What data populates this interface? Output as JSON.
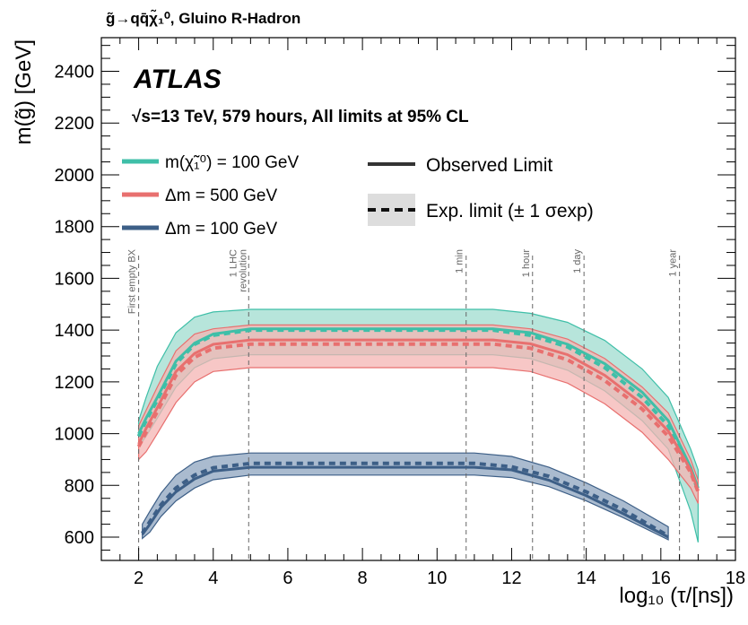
{
  "chart_data": {
    "type": "line",
    "title": "g̃→qq̄χ̃₁⁰, Gluino R-Hadron",
    "experiment": "ATLAS",
    "subtitle": "√s=13 TeV, 579 hours, All limits at 95% CL",
    "xlabel": "log₁₀ (τ/[ns])",
    "ylabel": "m(g̃) [GeV]",
    "xlim": [
      1,
      18
    ],
    "ylim": [
      510,
      2530
    ],
    "x_ticks": [
      2,
      4,
      6,
      8,
      10,
      12,
      14,
      16,
      18
    ],
    "y_ticks": [
      600,
      800,
      1000,
      1200,
      1400,
      1600,
      1800,
      2000,
      2200,
      2400
    ],
    "legend_placement": "top-left",
    "legend": {
      "series_labels": [
        "m(χ̃₁⁰) = 100 GeV",
        "Δm = 500 GeV",
        "Δm = 100 GeV"
      ],
      "observed_label": "Observed Limit",
      "expected_label": "Exp. limit (± 1 σexp)"
    },
    "reference_lines": [
      {
        "x": 2.0,
        "label": "First empty BX"
      },
      {
        "x": 4.95,
        "label": "1 LHC revolution"
      },
      {
        "x": 10.78,
        "label": "1 min"
      },
      {
        "x": 12.56,
        "label": "1 hour"
      },
      {
        "x": 13.94,
        "label": "1 day"
      },
      {
        "x": 16.5,
        "label": "1 year"
      }
    ],
    "series": [
      {
        "name": "m(χ̃₁⁰) = 100 GeV",
        "color": "#3fbfa8",
        "band_fill": "#9fdccf",
        "observed": {
          "x": [
            2.0,
            2.2,
            2.5,
            3.0,
            3.5,
            4.0,
            5.0,
            6.0,
            8.0,
            10.0,
            11.5,
            12.5,
            13.5,
            14.5,
            15.5,
            16.2,
            16.8,
            17.0
          ],
          "y": [
            1000,
            1060,
            1140,
            1280,
            1350,
            1385,
            1405,
            1405,
            1405,
            1405,
            1405,
            1390,
            1345,
            1270,
            1160,
            1050,
            870,
            790
          ]
        },
        "expected": {
          "x": [
            2.0,
            2.2,
            2.5,
            3.0,
            3.5,
            4.0,
            5.0,
            6.0,
            8.0,
            10.0,
            11.5,
            12.5,
            13.5,
            14.5,
            15.5,
            16.2,
            16.8,
            17.0
          ],
          "y": [
            990,
            1050,
            1130,
            1270,
            1345,
            1380,
            1400,
            1400,
            1400,
            1400,
            1400,
            1380,
            1335,
            1255,
            1140,
            1030,
            860,
            780
          ]
        },
        "band_upper": [
          1050,
          1140,
          1260,
          1390,
          1450,
          1470,
          1480,
          1480,
          1480,
          1480,
          1480,
          1465,
          1430,
          1360,
          1250,
          1140,
          940,
          860
        ],
        "band_lower": [
          950,
          990,
          1060,
          1180,
          1255,
          1290,
          1305,
          1305,
          1305,
          1305,
          1305,
          1290,
          1245,
          1165,
          1050,
          940,
          700,
          580
        ]
      },
      {
        "name": "Δm = 500 GeV",
        "color": "#e8706f",
        "band_fill": "#f4b4b3",
        "observed": {
          "x": [
            2.0,
            2.2,
            2.5,
            3.0,
            3.5,
            4.0,
            5.0,
            6.0,
            8.0,
            10.0,
            11.5,
            12.5,
            13.5,
            14.5,
            15.5,
            16.2,
            16.8,
            17.0
          ],
          "y": [
            960,
            1020,
            1100,
            1240,
            1310,
            1345,
            1362,
            1362,
            1362,
            1362,
            1362,
            1347,
            1305,
            1225,
            1115,
            1010,
            860,
            780
          ]
        },
        "expected": {
          "x": [
            2.0,
            2.2,
            2.5,
            3.0,
            3.5,
            4.0,
            5.0,
            6.0,
            8.0,
            10.0,
            11.5,
            12.5,
            13.5,
            14.5,
            15.5,
            16.2,
            16.8,
            17.0
          ],
          "y": [
            950,
            1005,
            1085,
            1225,
            1295,
            1330,
            1346,
            1346,
            1346,
            1346,
            1346,
            1330,
            1285,
            1205,
            1095,
            990,
            850,
            775
          ]
        },
        "band_upper": [
          1030,
          1090,
          1180,
          1320,
          1385,
          1405,
          1420,
          1420,
          1420,
          1420,
          1420,
          1405,
          1365,
          1290,
          1180,
          1080,
          900,
          820
        ],
        "band_lower": [
          900,
          930,
          1000,
          1120,
          1200,
          1240,
          1255,
          1255,
          1255,
          1255,
          1255,
          1240,
          1195,
          1115,
          1005,
          900,
          790,
          730
        ]
      },
      {
        "name": "Δm = 100 GeV",
        "color": "#3d5f87",
        "band_fill": "#8ea4bf",
        "observed": {
          "x": [
            2.1,
            2.3,
            2.6,
            3.0,
            3.5,
            4.0,
            5.0,
            6.0,
            8.0,
            10.0,
            11.0,
            12.0,
            13.0,
            14.0,
            15.0,
            16.2
          ],
          "y": [
            610,
            650,
            715,
            775,
            825,
            855,
            870,
            870,
            870,
            870,
            870,
            860,
            820,
            760,
            690,
            600
          ]
        },
        "expected": {
          "x": [
            2.1,
            2.3,
            2.6,
            3.0,
            3.5,
            4.0,
            5.0,
            6.0,
            8.0,
            10.0,
            11.0,
            12.0,
            13.0,
            14.0,
            15.0,
            16.2
          ],
          "y": [
            615,
            660,
            725,
            790,
            840,
            868,
            885,
            885,
            885,
            885,
            885,
            872,
            835,
            775,
            705,
            605
          ]
        },
        "band_upper": [
          650,
          700,
          770,
          840,
          890,
          912,
          925,
          925,
          925,
          925,
          925,
          912,
          870,
          810,
          740,
          640
        ],
        "band_lower": [
          595,
          620,
          680,
          740,
          790,
          822,
          840,
          840,
          840,
          840,
          840,
          830,
          795,
          740,
          675,
          590
        ]
      }
    ]
  }
}
